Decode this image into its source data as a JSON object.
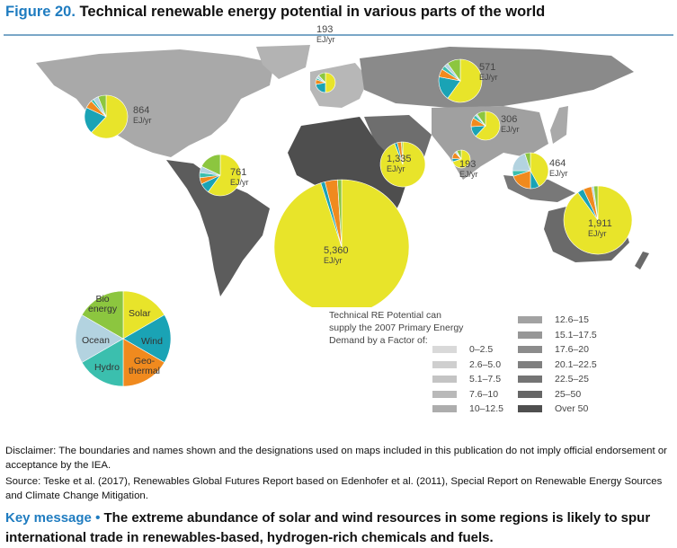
{
  "title": {
    "figure": "Figure 20.",
    "text": " Technical renewable energy potential in various parts of the world"
  },
  "colors": {
    "solar": "#e8e42a",
    "wind": "#1aa3b5",
    "geothermal": "#f08a1e",
    "hydro": "#3bbfae",
    "ocean": "#b3d3e0",
    "bioenergy": "#8cc63f"
  },
  "energy_sources": [
    "Solar",
    "Wind",
    "Geothermal",
    "Hydro",
    "Ocean",
    "Bioenergy"
  ],
  "regions": [
    {
      "id": "north-america",
      "value": "864",
      "unit": "EJ/yr",
      "shares": [
        0.62,
        0.2,
        0.06,
        0.02,
        0.04,
        0.06
      ]
    },
    {
      "id": "latin-america",
      "value": "761",
      "unit": "EJ/yr",
      "shares": [
        0.6,
        0.08,
        0.05,
        0.04,
        0.05,
        0.18
      ]
    },
    {
      "id": "europe",
      "value": "193",
      "unit": "EJ/yr",
      "shares": [
        0.5,
        0.22,
        0.08,
        0.03,
        0.05,
        0.12
      ]
    },
    {
      "id": "eurasia",
      "value": "571",
      "unit": "EJ/yr",
      "shares": [
        0.6,
        0.18,
        0.06,
        0.03,
        0.03,
        0.1
      ]
    },
    {
      "id": "china",
      "value": "306",
      "unit": "EJ/yr",
      "shares": [
        0.62,
        0.12,
        0.1,
        0.04,
        0.02,
        0.1
      ]
    },
    {
      "id": "india",
      "value": "193",
      "unit": "EJ/yr",
      "shares": [
        0.7,
        0.06,
        0.12,
        0.02,
        0.02,
        0.08
      ]
    },
    {
      "id": "middle-east",
      "value": "1,335",
      "unit": "EJ/yr",
      "shares": [
        0.94,
        0.02,
        0.03,
        0.0,
        0.0,
        0.01
      ]
    },
    {
      "id": "africa",
      "value": "5,360",
      "unit": "EJ/yr",
      "shares": [
        0.95,
        0.01,
        0.03,
        0.0,
        0.0,
        0.01
      ]
    },
    {
      "id": "se-asia",
      "value": "464",
      "unit": "EJ/yr",
      "shares": [
        0.42,
        0.08,
        0.2,
        0.05,
        0.2,
        0.05
      ]
    },
    {
      "id": "oceania",
      "value": "1,911",
      "unit": "EJ/yr",
      "shares": [
        0.9,
        0.03,
        0.04,
        0.0,
        0.01,
        0.02
      ]
    }
  ],
  "pie_legend": {
    "solar": "Solar",
    "wind": "Wind",
    "geothermal_1": "Geo-",
    "geothermal_2": "thermal",
    "hydro": "Hydro",
    "ocean": "Ocean",
    "bio_1": "Bio",
    "bio_2": "energy"
  },
  "factor_legend": {
    "title_lines": [
      "Technical RE Potential can",
      "supply the 2007 Primary Energy",
      "Demand by a Factor of:"
    ],
    "items": [
      {
        "label": "0–2.5",
        "color": "#d9d9d9"
      },
      {
        "label": "2.6–5.0",
        "color": "#cfcfcf"
      },
      {
        "label": "5.1–7.5",
        "color": "#c4c4c4"
      },
      {
        "label": "7.6–10",
        "color": "#b9b9b9"
      },
      {
        "label": "10–12.5",
        "color": "#adadad"
      },
      {
        "label": "12.6–15",
        "color": "#a2a2a2"
      },
      {
        "label": "15.1–17.5",
        "color": "#979797"
      },
      {
        "label": "17.6–20",
        "color": "#8c8c8c"
      },
      {
        "label": "20.1–22.5",
        "color": "#808080"
      },
      {
        "label": "22.5–25",
        "color": "#747474"
      },
      {
        "label": "25–50",
        "color": "#666666"
      },
      {
        "label": "Over 50",
        "color": "#4f4f4f"
      }
    ]
  },
  "disclaimer": "Disclaimer: The boundaries and names shown and the designations used on maps included in this publication do not imply official endorsement or acceptance by the IEA.",
  "source": "Source: Teske et al. (2017), Renewables Global Futures Report based on Edenhofer et al. (2011), Special Report on Renewable Energy Sources and Climate Change Mitigation.",
  "key_message": {
    "label": "Key message •",
    "text": " The extreme abundance of solar and wind resources in some regions is likely to spur international trade in renewables-based, hydrogen-rich chemicals and fuels."
  }
}
